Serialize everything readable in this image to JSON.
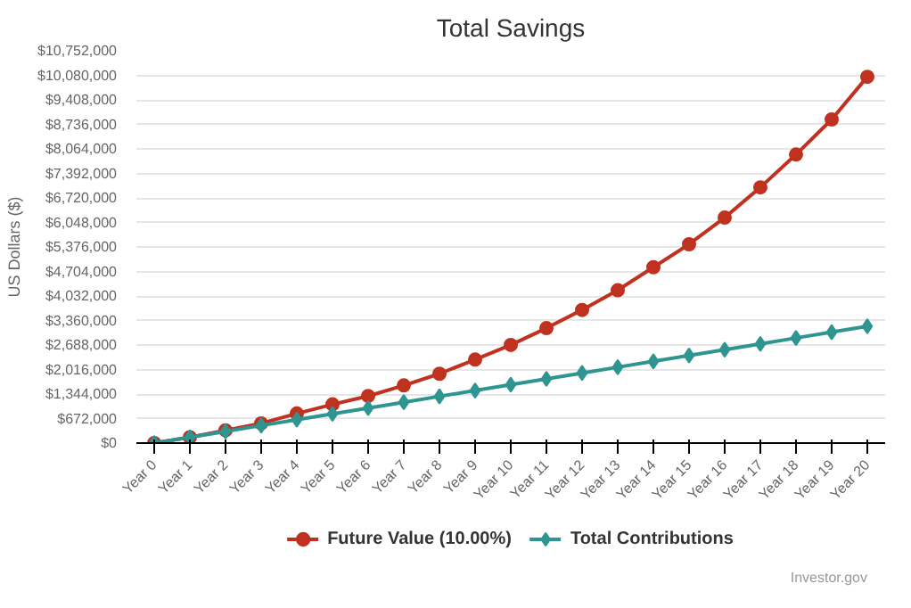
{
  "chart_data": {
    "type": "line",
    "title": "Total Savings",
    "ylabel": "US Dollars ($)",
    "categories": [
      "Year 0",
      "Year 1",
      "Year 2",
      "Year 3",
      "Year 4",
      "Year 5",
      "Year 6",
      "Year 7",
      "Year 8",
      "Year 9",
      "Year 10",
      "Year 11",
      "Year 12",
      "Year 13",
      "Year 14",
      "Year 15",
      "Year 16",
      "Year 17",
      "Year 18",
      "Year 19",
      "Year 20"
    ],
    "series": [
      {
        "name": "Future Value (10.00%)",
        "color": "#c0311f",
        "marker": "circle",
        "values": [
          0,
          160000,
          350000,
          540000,
          810000,
          1060000,
          1290000,
          1580000,
          1900000,
          2290000,
          2690000,
          3150000,
          3650000,
          4190000,
          4820000,
          5450000,
          6180000,
          7010000,
          7910000,
          8870000,
          10040000
        ]
      },
      {
        "name": "Total Contributions",
        "color": "#2e9591",
        "marker": "diamond",
        "values": [
          0,
          160000,
          320000,
          480000,
          640000,
          800000,
          960000,
          1120000,
          1280000,
          1440000,
          1600000,
          1760000,
          1920000,
          2080000,
          2240000,
          2400000,
          2560000,
          2720000,
          2880000,
          3040000,
          3200000
        ]
      }
    ],
    "ylim": [
      0,
      10752000
    ],
    "yticks": [
      {
        "value": 0,
        "label": "$0"
      },
      {
        "value": 672000,
        "label": "$672,000"
      },
      {
        "value": 1344000,
        "label": "$1,344,000"
      },
      {
        "value": 2016000,
        "label": "$2,016,000"
      },
      {
        "value": 2688000,
        "label": "$2,688,000"
      },
      {
        "value": 3360000,
        "label": "$3,360,000"
      },
      {
        "value": 4032000,
        "label": "$4,032,000"
      },
      {
        "value": 4704000,
        "label": "$4,704,000"
      },
      {
        "value": 5376000,
        "label": "$5,376,000"
      },
      {
        "value": 6048000,
        "label": "$6,048,000"
      },
      {
        "value": 6720000,
        "label": "$6,720,000"
      },
      {
        "value": 7392000,
        "label": "$7,392,000"
      },
      {
        "value": 8064000,
        "label": "$8,064,000"
      },
      {
        "value": 8736000,
        "label": "$8,736,000"
      },
      {
        "value": 9408000,
        "label": "$9,408,000"
      },
      {
        "value": 10080000,
        "label": "$10,080,000"
      },
      {
        "value": 10752000,
        "label": "$10,752,000"
      }
    ],
    "grid": "y",
    "legend": "bottom",
    "annotations": [
      "Investor.gov"
    ]
  }
}
